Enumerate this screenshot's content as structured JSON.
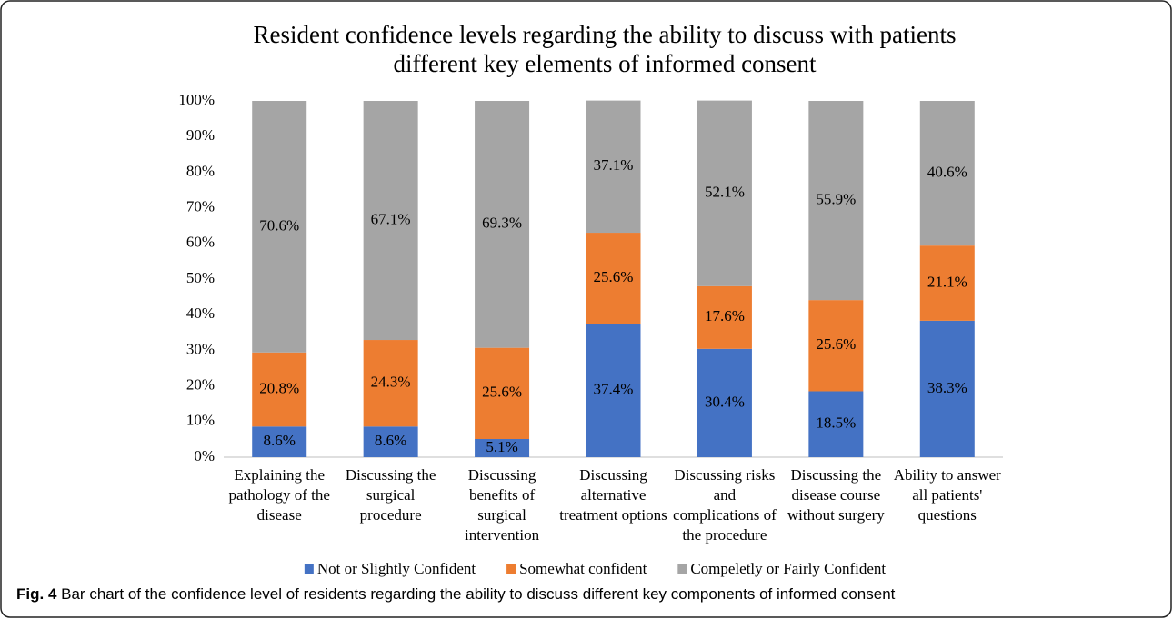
{
  "chart_data": {
    "type": "stacked_bar",
    "title": "Resident confidence levels regarding the ability to discuss with patients different key elements of informed consent",
    "categories": [
      "Explaining the pathology of the disease",
      "Discussing the surgical procedure",
      "Discussing benefits of surgical intervention",
      "Discussing alternative treatment options",
      "Discussing risks and complications of the procedure",
      "Discussing the disease course without surgery",
      "Ability to answer all patients' questions"
    ],
    "series": [
      {
        "name": "Not or Slightly Confident",
        "color": "#4472c4",
        "values": [
          8.6,
          8.6,
          5.1,
          37.4,
          30.4,
          18.5,
          38.3
        ],
        "value_labels": [
          "8.6%",
          "8.6%",
          "5.1%",
          "37.4%",
          "30.4%",
          "18.5%",
          "38.3%"
        ]
      },
      {
        "name": "Somewhat confident",
        "color": "#ed7d31",
        "values": [
          20.8,
          24.3,
          25.6,
          25.6,
          17.6,
          25.6,
          21.1
        ],
        "value_labels": [
          "20.8%",
          "24.3%",
          "25.6%",
          "25.6%",
          "17.6%",
          "25.6%",
          "21.1%"
        ]
      },
      {
        "name": "Compeletly or Fairly Confident",
        "color": "#a5a5a5",
        "values": [
          70.6,
          67.1,
          69.3,
          37.1,
          52.1,
          55.9,
          40.6
        ],
        "value_labels": [
          "70.6%",
          "67.1%",
          "69.3%",
          "37.1%",
          "52.1%",
          "55.9%",
          "40.6%"
        ]
      }
    ],
    "ylim": [
      0,
      100
    ],
    "yticks": [
      {
        "value": 0,
        "label": "0%"
      },
      {
        "value": 10,
        "label": "10%"
      },
      {
        "value": 20,
        "label": "20%"
      },
      {
        "value": 30,
        "label": "30%"
      },
      {
        "value": 40,
        "label": "40%"
      },
      {
        "value": 50,
        "label": "50%"
      },
      {
        "value": 60,
        "label": "60%"
      },
      {
        "value": 70,
        "label": "70%"
      },
      {
        "value": 80,
        "label": "80%"
      },
      {
        "value": 90,
        "label": "90%"
      },
      {
        "value": 100,
        "label": "100%"
      }
    ],
    "grid": false,
    "legend": "bottom"
  },
  "caption": {
    "label": "Fig. 4",
    "text": "Bar chart of the confidence level of residents regarding the ability to discuss different key components of informed consent"
  }
}
